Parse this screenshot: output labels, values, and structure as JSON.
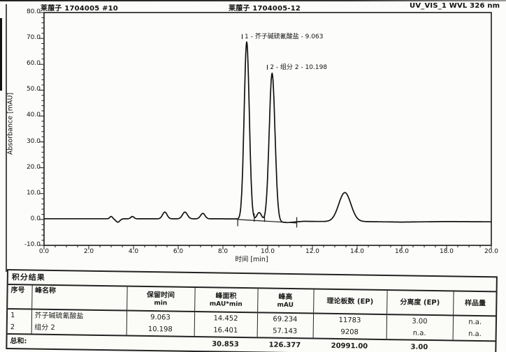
{
  "header": {
    "left": "莱菔子 1704005 #10",
    "center": "莱菔子 1704005-12",
    "right": "UV_VIS_1 WVL 326 nm"
  },
  "colors": {
    "ink": "#1a1a1a",
    "paper": "#fcfcfa",
    "trace": "#111111"
  },
  "chart_data": {
    "type": "line",
    "title": "HPLC chromatogram",
    "xlabel": "时间 [min]",
    "ylabel": "Absorbance [mAU]",
    "xlim": [
      0,
      20
    ],
    "ylim": [
      -10,
      80
    ],
    "grid": false,
    "x_ticks": [
      {
        "v": 0,
        "label": "0.0"
      },
      {
        "v": 2,
        "label": "2.0"
      },
      {
        "v": 4,
        "label": "4.0"
      },
      {
        "v": 6,
        "label": "6.0"
      },
      {
        "v": 8,
        "label": "8.0"
      },
      {
        "v": 10,
        "label": "10.0"
      },
      {
        "v": 12,
        "label": "12.0"
      },
      {
        "v": 14,
        "label": "14.0"
      },
      {
        "v": 16,
        "label": "16.0"
      },
      {
        "v": 18,
        "label": "18.0"
      },
      {
        "v": 20,
        "label": "20.0"
      }
    ],
    "y_ticks": [
      {
        "v": 80,
        "label": "80.0"
      },
      {
        "v": 70,
        "label": "70.0"
      },
      {
        "v": 60,
        "label": "60.0"
      },
      {
        "v": 50,
        "label": "50.0"
      },
      {
        "v": 40,
        "label": "40.0"
      },
      {
        "v": 30,
        "label": "30.0"
      },
      {
        "v": 20,
        "label": "20.0"
      },
      {
        "v": 10,
        "label": "10.0"
      },
      {
        "v": 0,
        "label": "0.0"
      },
      {
        "v": -10,
        "label": "-10.0"
      }
    ],
    "peaks": [
      {
        "t": 3.0,
        "h": 0.9,
        "s": 0.06
      },
      {
        "t": 3.3,
        "h": -1.3,
        "s": 0.09
      },
      {
        "t": 3.95,
        "h": 0.9,
        "s": 0.07
      },
      {
        "t": 5.4,
        "h": 2.6,
        "s": 0.1
      },
      {
        "t": 6.3,
        "h": 2.6,
        "s": 0.11
      },
      {
        "t": 7.1,
        "h": 2.1,
        "s": 0.1
      },
      {
        "t": 9.063,
        "h": 68.9,
        "s": 0.115
      },
      {
        "t": 9.62,
        "h": 3.2,
        "s": 0.11
      },
      {
        "t": 10.198,
        "h": 57.4,
        "s": 0.13
      },
      {
        "t": 13.45,
        "h": 11.2,
        "s": 0.27
      }
    ],
    "baseline_points": [
      [
        0,
        0.3
      ],
      [
        8.55,
        0.25
      ],
      [
        9.0,
        -0.2
      ],
      [
        10.9,
        -1.2
      ],
      [
        11.6,
        -0.7
      ],
      [
        12.8,
        -0.8
      ],
      [
        14.2,
        -0.8
      ],
      [
        16.0,
        -1.0
      ],
      [
        18.0,
        -0.8
      ],
      [
        20.0,
        -0.9
      ]
    ],
    "peak_labels": [
      {
        "text": "1 - 芥子碱硫氰酸盐 - 9.063",
        "t": 9.063,
        "apex": 69.0
      },
      {
        "text": "2 - 组分 2 - 10.198",
        "t": 10.198,
        "apex": 57.2
      }
    ],
    "integration": {
      "baseline": [
        [
          8.66,
          0.0
        ],
        [
          11.3,
          -1.35
        ]
      ],
      "ticks": [
        {
          "t": 8.66,
          "v1": 0.1,
          "v2": -2.6
        },
        {
          "t": 11.3,
          "v1": 0.9,
          "v2": -3.1
        },
        {
          "t": 9.4,
          "v1": 2.3,
          "v2": -0.9
        },
        {
          "t": 9.86,
          "v1": 2.3,
          "v2": -0.9
        }
      ]
    }
  },
  "table": {
    "title": "积分结果",
    "columns": [
      {
        "label": "序号",
        "unit": "",
        "align": "left"
      },
      {
        "label": "峰名称",
        "unit": "",
        "align": "left"
      },
      {
        "label": "保留时间",
        "unit": "min",
        "align": "center"
      },
      {
        "label": "峰面积",
        "unit": "mAU*min",
        "align": "center"
      },
      {
        "label": "峰高",
        "unit": "mAU",
        "align": "center"
      },
      {
        "label": "理论板数 (EP)",
        "unit": "",
        "align": "center"
      },
      {
        "label": "分离度 (EP)",
        "unit": "",
        "align": "center"
      },
      {
        "label": "样品量",
        "unit": "",
        "align": "center"
      }
    ],
    "rows": [
      [
        "1",
        "芥子碱硫氰酸盐",
        "9.063",
        "14.452",
        "69.234",
        "11783",
        "3.00",
        "n.a."
      ],
      [
        "2",
        "组分 2",
        "10.198",
        "16.401",
        "57.143",
        "9208",
        "n.a.",
        "n.a."
      ]
    ],
    "sum_label": "总和:",
    "sum_values": [
      "",
      "30.853",
      "126.377",
      "20991.00",
      "3.00",
      ""
    ]
  }
}
